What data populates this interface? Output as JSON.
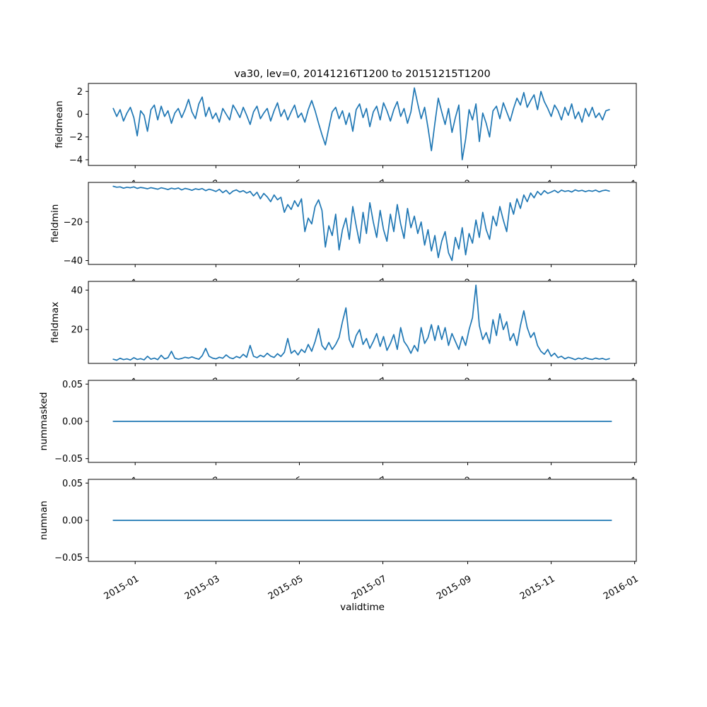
{
  "title": "va30, lev=0, 20141216T1200 to 20151215T1200",
  "colors": {
    "line": "#1f77b4",
    "axis": "#000000",
    "text": "#000000",
    "background": "#ffffff"
  },
  "x_axis": {
    "label": "validtime",
    "lim_days": [
      -18.2,
      382.2
    ],
    "tick_days": [
      16,
      75,
      136,
      197,
      259,
      320,
      381
    ],
    "tick_labels": [
      "2015-01",
      "2015-03",
      "2015-05",
      "2015-07",
      "2015-09",
      "2015-11",
      "2016-01"
    ],
    "tick_label_rotation_deg": 30,
    "start_date": "2014-12-16",
    "end_date": "2015-12-15"
  },
  "chart_data": [
    {
      "type": "line",
      "ylabel": "fieldmean",
      "yticks": [
        2,
        0,
        -2,
        -4
      ],
      "ytick_labels": [
        "2",
        "0",
        "−2",
        "−4"
      ],
      "ylim": [
        -4.5,
        2.7
      ],
      "grid": false,
      "legend": "none",
      "series": [
        {
          "name": "fieldmean",
          "x0": 0,
          "dx": 2.5,
          "values": [
            0.5,
            -0.2,
            0.4,
            -0.6,
            0.1,
            0.6,
            -0.3,
            -1.9,
            0.3,
            -0.1,
            -1.5,
            0.4,
            0.8,
            -0.5,
            0.7,
            -0.2,
            0.3,
            -0.8,
            0.1,
            0.5,
            -0.3,
            0.4,
            1.3,
            0.2,
            -0.4,
            0.9,
            1.5,
            -0.2,
            0.6,
            -0.4,
            0.1,
            -0.7,
            0.5,
            0.0,
            -0.5,
            0.8,
            0.3,
            -0.3,
            0.6,
            -0.1,
            -0.9,
            0.2,
            0.7,
            -0.4,
            0.1,
            0.5,
            -0.6,
            0.3,
            1.0,
            -0.2,
            0.4,
            -0.5,
            0.2,
            0.8,
            -0.3,
            0.1,
            -0.7,
            0.4,
            1.2,
            0.3,
            -0.8,
            -1.8,
            -2.7,
            -1.2,
            0.2,
            0.6,
            -0.4,
            0.3,
            -0.9,
            0.1,
            -1.5,
            0.4,
            0.9,
            -0.3,
            0.5,
            -1.1,
            0.2,
            0.7,
            -0.5,
            1.0,
            0.3,
            -0.6,
            0.4,
            1.1,
            -0.2,
            0.5,
            -0.8,
            0.2,
            2.3,
            0.9,
            -0.4,
            0.6,
            -1.2,
            -3.2,
            -0.8,
            1.4,
            0.2,
            -0.9,
            0.5,
            -1.6,
            -0.3,
            0.8,
            -4.0,
            -2.2,
            0.4,
            -0.5,
            0.9,
            -2.4,
            0.1,
            -0.8,
            -2.0,
            0.3,
            0.7,
            -0.4,
            1.0,
            0.2,
            -0.6,
            0.5,
            1.4,
            0.8,
            1.9,
            0.6,
            1.2,
            1.7,
            0.4,
            2.0,
            1.1,
            0.5,
            -0.2,
            0.8,
            0.3,
            -0.5,
            0.6,
            -0.1,
            0.9,
            -0.4,
            0.2,
            -0.7,
            0.5,
            -0.2,
            0.6,
            -0.3,
            0.1,
            -0.5,
            0.3,
            0.4
          ]
        }
      ]
    },
    {
      "type": "line",
      "ylabel": "fieldmin",
      "yticks": [
        -20,
        -40
      ],
      "ytick_labels": [
        "−20",
        "−40"
      ],
      "ylim": [
        -42,
        0.5
      ],
      "grid": false,
      "legend": "none",
      "series": [
        {
          "name": "fieldmin",
          "x0": 0,
          "dx": 2.5,
          "values": [
            -1.5,
            -2.0,
            -1.8,
            -2.5,
            -2.0,
            -2.3,
            -1.8,
            -2.6,
            -2.1,
            -2.4,
            -2.8,
            -2.2,
            -2.6,
            -3.0,
            -2.3,
            -2.7,
            -3.2,
            -2.5,
            -2.9,
            -2.4,
            -3.4,
            -2.6,
            -3.0,
            -3.6,
            -2.8,
            -3.2,
            -2.7,
            -3.8,
            -3.0,
            -3.5,
            -4.2,
            -3.1,
            -4.8,
            -3.6,
            -5.5,
            -4.0,
            -3.4,
            -4.5,
            -3.8,
            -5.0,
            -4.2,
            -6.5,
            -4.6,
            -8.0,
            -5.2,
            -7.0,
            -9.5,
            -6.0,
            -8.5,
            -7.2,
            -15.0,
            -11.0,
            -13.5,
            -9.0,
            -12.0,
            -8.0,
            -25.0,
            -18.0,
            -21.0,
            -12.0,
            -8.5,
            -14.0,
            -33.0,
            -22.0,
            -27.0,
            -16.0,
            -34.5,
            -24.0,
            -18.0,
            -29.0,
            -12.0,
            -22.0,
            -31.0,
            -15.0,
            -26.0,
            -10.0,
            -20.0,
            -28.0,
            -14.0,
            -24.0,
            -30.0,
            -16.0,
            -25.0,
            -11.0,
            -21.0,
            -28.5,
            -13.0,
            -23.0,
            -17.0,
            -26.0,
            -20.0,
            -32.0,
            -24.0,
            -35.0,
            -27.0,
            -38.5,
            -30.0,
            -25.0,
            -36.0,
            -40.0,
            -28.0,
            -34.0,
            -23.0,
            -37.0,
            -26.0,
            -31.0,
            -19.0,
            -28.0,
            -15.0,
            -24.0,
            -29.0,
            -17.0,
            -22.0,
            -12.0,
            -19.0,
            -25.0,
            -10.0,
            -16.0,
            -8.0,
            -13.0,
            -6.0,
            -9.5,
            -5.0,
            -7.5,
            -4.2,
            -6.0,
            -3.8,
            -5.2,
            -4.5,
            -3.6,
            -4.8,
            -3.5,
            -4.2,
            -3.8,
            -4.5,
            -3.4,
            -4.0,
            -3.6,
            -4.3,
            -3.7,
            -4.1,
            -3.5,
            -4.4,
            -3.8,
            -3.5,
            -4.0
          ]
        }
      ]
    },
    {
      "type": "line",
      "ylabel": "fieldmax",
      "yticks": [
        40,
        20
      ],
      "ytick_labels": [
        "40",
        "20"
      ],
      "ylim": [
        2.9,
        44.4
      ],
      "grid": false,
      "legend": "none",
      "series": [
        {
          "name": "fieldmax",
          "x0": 0,
          "dx": 2.5,
          "values": [
            5.0,
            4.5,
            5.5,
            4.8,
            5.2,
            4.6,
            5.8,
            4.9,
            5.3,
            4.7,
            6.5,
            5.0,
            5.6,
            4.8,
            7.0,
            5.2,
            5.8,
            9.0,
            5.5,
            5.0,
            5.4,
            6.0,
            5.6,
            6.2,
            5.5,
            5.0,
            6.8,
            10.5,
            6.5,
            5.6,
            5.2,
            6.0,
            5.5,
            7.2,
            5.8,
            5.3,
            6.4,
            5.7,
            7.5,
            6.0,
            12.0,
            6.5,
            5.8,
            7.0,
            6.2,
            8.0,
            6.6,
            5.9,
            7.8,
            6.4,
            8.5,
            15.5,
            8.0,
            9.5,
            7.2,
            10.0,
            8.4,
            12.5,
            9.0,
            14.0,
            20.5,
            12.0,
            9.8,
            13.5,
            10.0,
            12.5,
            16.0,
            24.0,
            31.0,
            15.0,
            11.0,
            17.0,
            20.0,
            12.5,
            15.5,
            10.5,
            14.0,
            18.0,
            11.5,
            16.5,
            9.5,
            13.0,
            17.5,
            10.0,
            21.0,
            14.0,
            11.5,
            8.0,
            12.0,
            9.0,
            21.0,
            13.0,
            16.0,
            22.5,
            14.5,
            22.0,
            15.0,
            21.0,
            12.0,
            18.0,
            14.0,
            10.0,
            16.5,
            12.0,
            20.0,
            26.0,
            42.5,
            22.0,
            15.0,
            18.5,
            13.0,
            25.0,
            17.0,
            28.0,
            20.0,
            24.0,
            14.5,
            18.0,
            12.0,
            22.0,
            29.5,
            21.0,
            16.0,
            18.5,
            12.0,
            9.0,
            7.5,
            10.0,
            6.5,
            8.0,
            5.8,
            6.5,
            5.2,
            6.0,
            5.5,
            4.8,
            5.6,
            5.0,
            5.8,
            5.2,
            4.9,
            5.6,
            5.1,
            5.4,
            4.8,
            5.3
          ]
        }
      ]
    },
    {
      "type": "line",
      "ylabel": "nummasked",
      "yticks": [
        0.05,
        0.0,
        -0.05
      ],
      "ytick_labels": [
        "0.05",
        "0.00",
        "−0.05"
      ],
      "ylim": [
        -0.055,
        0.055
      ],
      "grid": false,
      "legend": "none",
      "series": [
        {
          "name": "nummasked",
          "x_days": [
            0,
            364
          ],
          "values": [
            0,
            0
          ],
          "constant_value": 0
        }
      ]
    },
    {
      "type": "line",
      "ylabel": "numnan",
      "yticks": [
        0.05,
        0.0,
        -0.05
      ],
      "ytick_labels": [
        "0.05",
        "0.00",
        "−0.05"
      ],
      "ylim": [
        -0.055,
        0.055
      ],
      "grid": false,
      "legend": "none",
      "series": [
        {
          "name": "numnan",
          "x_days": [
            0,
            364
          ],
          "values": [
            0,
            0
          ],
          "constant_value": 0
        }
      ]
    }
  ]
}
